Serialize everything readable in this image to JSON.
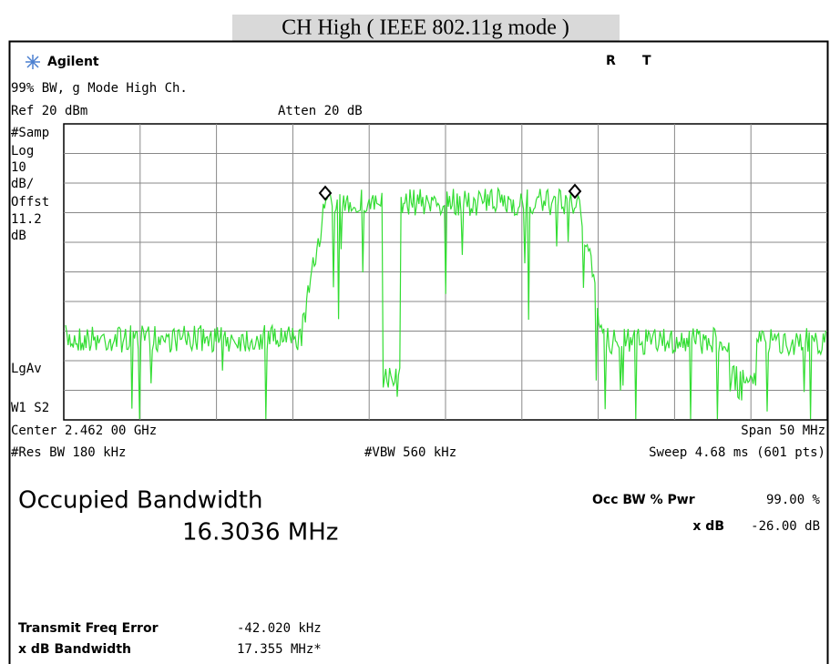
{
  "title": "CH High ( IEEE 802.11g mode )",
  "header": {
    "brand": "Agilent",
    "status": [
      "R",
      "T"
    ],
    "subtitle": "99% BW, g Mode High Ch.",
    "ref": "Ref 20 dBm",
    "atten": "Atten 20 dB"
  },
  "side_labels": [
    "#Samp",
    "Log",
    "10",
    "dB/",
    "Offst",
    "11.2",
    "dB",
    "LgAv",
    "W1 S2"
  ],
  "footer": {
    "center": "Center 2.462 00 GHz",
    "span": "Span 50 MHz",
    "res_bw": "#Res BW 180 kHz",
    "vbw": "#VBW 560 kHz",
    "sweep": "Sweep 4.68 ms (601 pts)"
  },
  "results": {
    "heading": "Occupied Bandwidth",
    "value": "16.3036 MHz",
    "occ_label": "Occ BW % Pwr",
    "occ_value": "99.00 %",
    "xdb_label": "x dB",
    "xdb_value": "-26.00 dB",
    "freq_error_label": "Transmit Freq Error",
    "freq_error_value": "-42.020 kHz",
    "xdb_bw_label": "x dB Bandwidth",
    "xdb_bw_value": "17.355 MHz*"
  }
}
